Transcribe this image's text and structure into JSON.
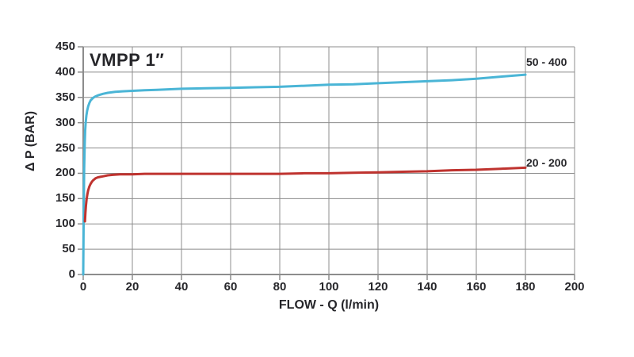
{
  "page": {
    "background": "#ffffff"
  },
  "chart_data": {
    "type": "line",
    "title": "VMPP 1″",
    "xlabel": "FLOW - Q (l/min)",
    "ylabel": "Δ P (BAR)",
    "xlim": [
      0,
      200
    ],
    "ylim": [
      0,
      450
    ],
    "x_ticks": [
      0,
      20,
      40,
      60,
      80,
      100,
      120,
      140,
      160,
      180,
      200
    ],
    "y_ticks": [
      0,
      50,
      100,
      150,
      200,
      250,
      300,
      350,
      400,
      450
    ],
    "grid": true,
    "grid_color": "#8c8c8c",
    "axis_color": "#8c8c8c",
    "text_color": "#26262a",
    "legend_position": "right-inline",
    "series": [
      {
        "name": "50 - 400",
        "color": "#4ab5d6",
        "points": [
          [
            0,
            0
          ],
          [
            0.2,
            120
          ],
          [
            0.4,
            210
          ],
          [
            0.6,
            258
          ],
          [
            0.8,
            285
          ],
          [
            1,
            300
          ],
          [
            1.3,
            314
          ],
          [
            1.6,
            324
          ],
          [
            2,
            332
          ],
          [
            2.5,
            339
          ],
          [
            3,
            344
          ],
          [
            4,
            349
          ],
          [
            5,
            352
          ],
          [
            6,
            354
          ],
          [
            8,
            357
          ],
          [
            10,
            359
          ],
          [
            13,
            361
          ],
          [
            16,
            362
          ],
          [
            20,
            363
          ],
          [
            25,
            364
          ],
          [
            30,
            365
          ],
          [
            40,
            367
          ],
          [
            50,
            368
          ],
          [
            60,
            369
          ],
          [
            70,
            370
          ],
          [
            80,
            371
          ],
          [
            90,
            373
          ],
          [
            100,
            375
          ],
          [
            110,
            376
          ],
          [
            120,
            378
          ],
          [
            130,
            380
          ],
          [
            140,
            382
          ],
          [
            150,
            384
          ],
          [
            160,
            387
          ],
          [
            170,
            391
          ],
          [
            180,
            395
          ]
        ]
      },
      {
        "name": "20 - 200",
        "color": "#bf332f",
        "points": [
          [
            0.7,
            105
          ],
          [
            0.9,
            122
          ],
          [
            1.1,
            135
          ],
          [
            1.4,
            149
          ],
          [
            1.7,
            159
          ],
          [
            2,
            166
          ],
          [
            2.5,
            174
          ],
          [
            3,
            179
          ],
          [
            3.5,
            183
          ],
          [
            4,
            186
          ],
          [
            5,
            190
          ],
          [
            6,
            192
          ],
          [
            7,
            193
          ],
          [
            8,
            194
          ],
          [
            10,
            196
          ],
          [
            12,
            197
          ],
          [
            15,
            198
          ],
          [
            20,
            198
          ],
          [
            25,
            199
          ],
          [
            30,
            199
          ],
          [
            40,
            199
          ],
          [
            50,
            199
          ],
          [
            60,
            199
          ],
          [
            70,
            199
          ],
          [
            80,
            199
          ],
          [
            90,
            200
          ],
          [
            100,
            200
          ],
          [
            110,
            201
          ],
          [
            120,
            202
          ],
          [
            130,
            203
          ],
          [
            140,
            204
          ],
          [
            150,
            206
          ],
          [
            160,
            207
          ],
          [
            170,
            209
          ],
          [
            180,
            211
          ]
        ]
      }
    ]
  }
}
